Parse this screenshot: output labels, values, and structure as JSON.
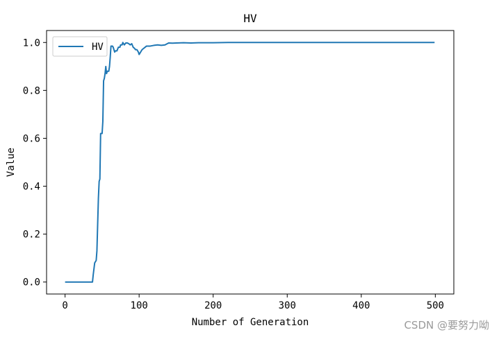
{
  "chart_data": {
    "type": "line",
    "title": "HV",
    "xlabel": "Number of Generation",
    "ylabel": "Value",
    "xlim": [
      -25,
      525
    ],
    "ylim": [
      -0.05,
      1.05
    ],
    "xticks": [
      0,
      100,
      200,
      300,
      400,
      500
    ],
    "xtick_labels": [
      "0",
      "100",
      "200",
      "300",
      "400",
      "500"
    ],
    "yticks": [
      0.0,
      0.2,
      0.4,
      0.6,
      0.8,
      1.0
    ],
    "ytick_labels": [
      "0.0",
      "0.2",
      "0.4",
      "0.6",
      "0.8",
      "1.0"
    ],
    "grid": false,
    "legend_position": "top-left",
    "series": [
      {
        "name": "HV",
        "color": "#1f77b4",
        "x": [
          0,
          37,
          38,
          40,
          42,
          43,
          45,
          46,
          47,
          48,
          49,
          50,
          51,
          52,
          53,
          54,
          55,
          56,
          57,
          58,
          59,
          60,
          61,
          62,
          63,
          64,
          65,
          67,
          68,
          70,
          72,
          74,
          75,
          77,
          78,
          80,
          82,
          84,
          86,
          88,
          90,
          92,
          94,
          95,
          97,
          99,
          100,
          101,
          102,
          104,
          106,
          108,
          110,
          115,
          120,
          125,
          130,
          135,
          138,
          140,
          145,
          150,
          160,
          170,
          180,
          200,
          220,
          240,
          260,
          300,
          400,
          499
        ],
        "y": [
          0.0,
          0.0,
          0.03,
          0.08,
          0.09,
          0.13,
          0.35,
          0.42,
          0.43,
          0.62,
          0.62,
          0.62,
          0.67,
          0.84,
          0.85,
          0.87,
          0.9,
          0.87,
          0.88,
          0.88,
          0.88,
          0.9,
          0.94,
          0.985,
          0.985,
          0.985,
          0.98,
          0.96,
          0.965,
          0.965,
          0.98,
          0.98,
          0.99,
          0.99,
          1.0,
          0.99,
          0.998,
          0.998,
          0.995,
          0.99,
          0.995,
          0.98,
          0.975,
          0.97,
          0.97,
          0.96,
          0.95,
          0.955,
          0.96,
          0.97,
          0.975,
          0.98,
          0.985,
          0.985,
          0.988,
          0.99,
          0.988,
          0.99,
          0.995,
          0.998,
          0.997,
          0.998,
          0.999,
          0.998,
          0.999,
          0.999,
          1.0,
          1.0,
          1.0,
          1.0,
          1.0,
          1.0
        ]
      }
    ]
  },
  "watermark": "CSDN @要努力呦"
}
